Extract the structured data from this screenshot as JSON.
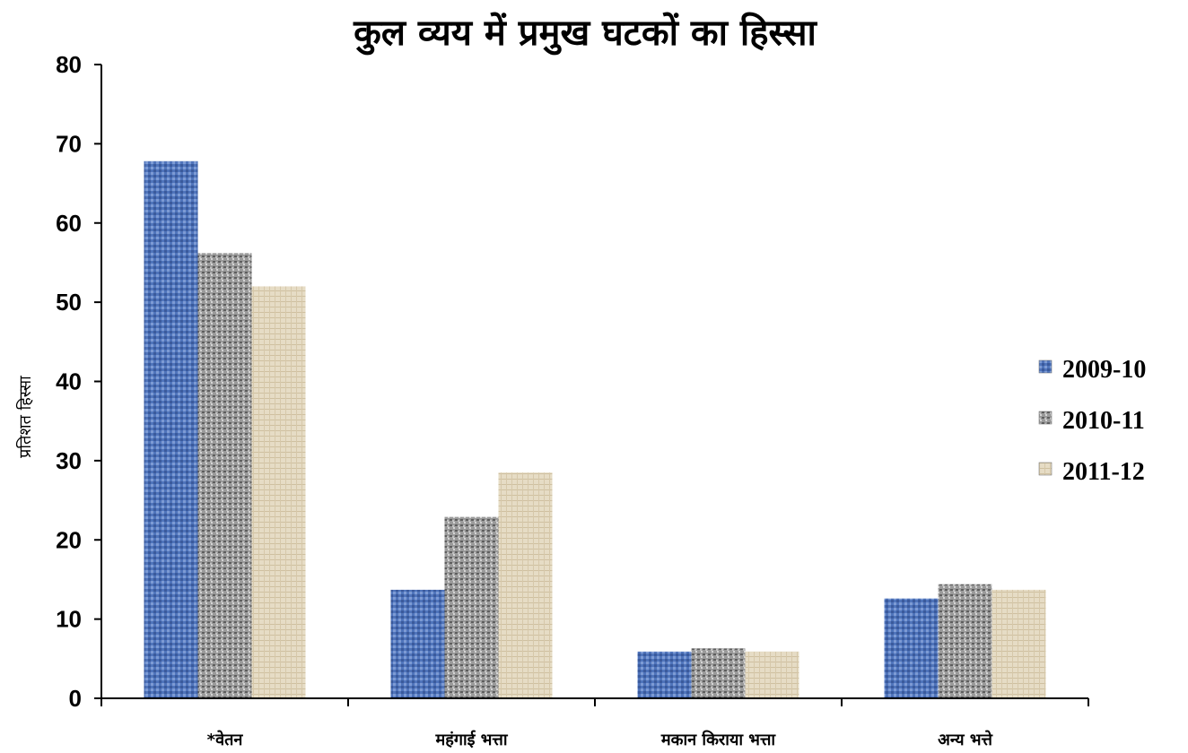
{
  "chart_data": {
    "type": "bar",
    "title": "कुल व्यय में प्रमुख घटकों का हिस्सा",
    "xlabel": "",
    "ylabel": "प्रतिशत हिस्सा",
    "ylim": [
      0,
      80
    ],
    "yticks": [
      0,
      10,
      20,
      30,
      40,
      50,
      60,
      70,
      80
    ],
    "grid": false,
    "legend_position": "right",
    "categories": [
      "*वेतन",
      "महंगाई भत्ता",
      "मकान किराया भत्ता",
      "अन्य भत्ते"
    ],
    "series": [
      {
        "name": "2009-10",
        "values": [
          67.8,
          13.7,
          5.9,
          12.6
        ],
        "color": "#4a6fb5"
      },
      {
        "name": "2010-11",
        "values": [
          56.2,
          22.9,
          6.3,
          14.4
        ],
        "color": "#8c8c8c"
      },
      {
        "name": "2011-12",
        "values": [
          52.0,
          28.5,
          5.9,
          13.7
        ],
        "color": "#ddd0b4"
      }
    ]
  }
}
